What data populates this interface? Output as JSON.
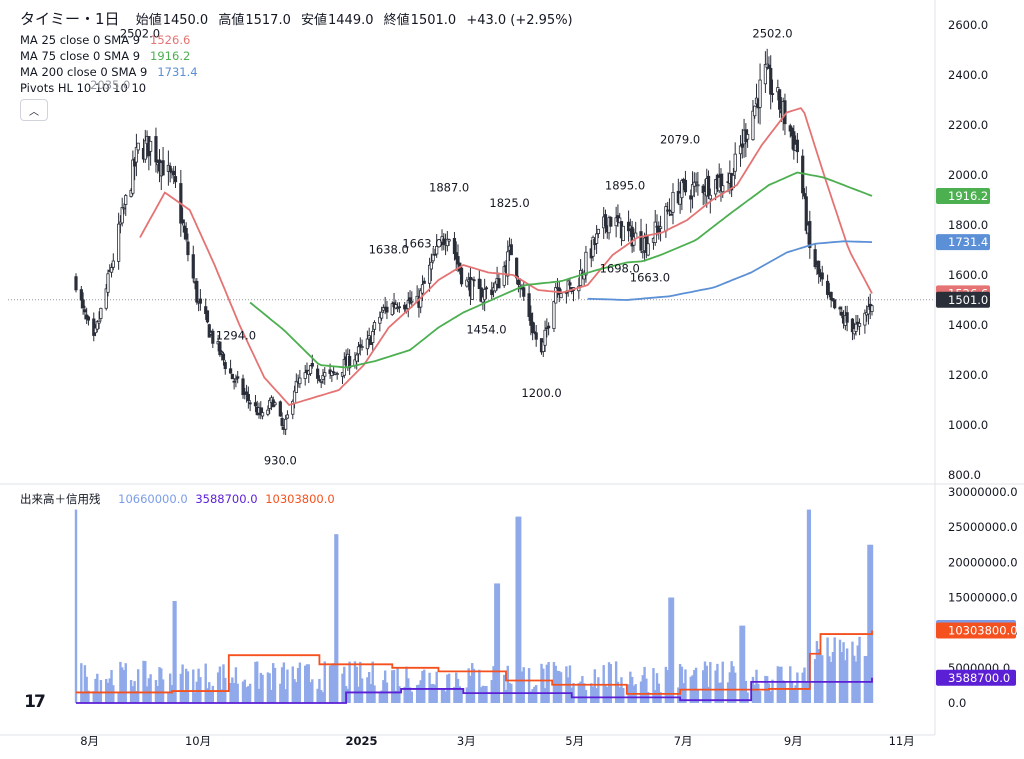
{
  "header": {
    "symbol": "タイミー・1日",
    "open_label": "始値",
    "open": "1450.0",
    "high_label": "高値",
    "high": "1517.0",
    "low_label": "安値",
    "low": "1449.0",
    "close_label": "終値",
    "close": "1501.0",
    "change": "+43.0 (+2.95%)"
  },
  "indicators": [
    {
      "label": "MA 25 close 0 SMA 9",
      "value": "1526.6",
      "color": "#e57373"
    },
    {
      "label": "MA 75 close 0 SMA 9",
      "value": "1916.2",
      "color": "#4caf50"
    },
    {
      "label": "MA 200 close 0 SMA 9",
      "value": "1731.4",
      "color": "#5b8fd6"
    }
  ],
  "pivots_label": "Pivots HL 10 10 10 10",
  "pivots_overlap": "2035.0",
  "volume_legend": {
    "label": "出来高＋信用残",
    "values": [
      "10660000.0",
      "3588700.0",
      "10303800.0"
    ],
    "colors": [
      "#7b9de8",
      "#5b1fd6",
      "#f5511e"
    ]
  },
  "tv_logo": "17",
  "chart_data": [
    {
      "type": "candlestick",
      "y_ticks": [
        "800.0",
        "1000.0",
        "1200.0",
        "1400.0",
        "1600.0",
        "1800.0",
        "2000.0",
        "2200.0",
        "2400.0",
        "2600.0"
      ],
      "ylim": [
        800,
        2630
      ],
      "x_ticks": [
        "8月",
        "10月",
        "2025",
        "3月",
        "5月",
        "7月",
        "9月",
        "11月"
      ],
      "last_price": "1501.0",
      "price_badges": [
        {
          "text": "1916.2",
          "value": 1916.2,
          "color": "#4caf50"
        },
        {
          "text": "1731.4",
          "value": 1731.4,
          "color": "#5b8fd6"
        },
        {
          "text": "1526.6",
          "value": 1526.6,
          "color": "#e57373"
        },
        {
          "text": "1501.0",
          "value": 1501.0,
          "color": "#2a2e39"
        }
      ],
      "pivot_labels": [
        {
          "text": "2502.0",
          "date": "2024-08-31",
          "value": 2502,
          "pos": "above"
        },
        {
          "text": "1294.0",
          "date": "2024-10-24",
          "value": 1294,
          "pos": "above"
        },
        {
          "text": "930.0",
          "date": "2024-11-18",
          "value": 930,
          "pos": "below"
        },
        {
          "text": "1638.0",
          "date": "2025-01-18",
          "value": 1638,
          "pos": "above"
        },
        {
          "text": "1663.0",
          "date": "2025-02-06",
          "value": 1663,
          "pos": "above"
        },
        {
          "text": "1887.0",
          "date": "2025-02-21",
          "value": 1887,
          "pos": "above"
        },
        {
          "text": "1825.0",
          "date": "2025-03-27",
          "value": 1825,
          "pos": "above"
        },
        {
          "text": "1454.0",
          "date": "2025-03-14",
          "value": 1454,
          "pos": "below"
        },
        {
          "text": "1200.0",
          "date": "2025-04-14",
          "value": 1200,
          "pos": "below"
        },
        {
          "text": "1698.0",
          "date": "2025-05-28",
          "value": 1698,
          "pos": "below"
        },
        {
          "text": "1663.0",
          "date": "2025-06-14",
          "value": 1663,
          "pos": "below"
        },
        {
          "text": "1895.0",
          "date": "2025-05-31",
          "value": 1895,
          "pos": "above"
        },
        {
          "text": "2079.0",
          "date": "2025-07-01",
          "value": 2079,
          "pos": "above"
        },
        {
          "text": "2502.0",
          "date": "2025-08-22",
          "value": 2502,
          "pos": "above"
        }
      ],
      "candles_anchor": [
        [
          "2024-07-26",
          1580
        ],
        [
          "2024-07-30",
          1450
        ],
        [
          "2024-08-05",
          1330
        ],
        [
          "2024-08-12",
          1540
        ],
        [
          "2024-08-20",
          1800
        ],
        [
          "2024-08-30",
          2100
        ],
        [
          "2024-09-06",
          2120
        ],
        [
          "2024-09-12",
          2050
        ],
        [
          "2024-09-20",
          1950
        ],
        [
          "2024-09-26",
          1720
        ],
        [
          "2024-10-03",
          1480
        ],
        [
          "2024-10-12",
          1330
        ],
        [
          "2024-10-22",
          1190
        ],
        [
          "2024-10-30",
          1110
        ],
        [
          "2024-11-08",
          1030
        ],
        [
          "2024-11-14",
          1100
        ],
        [
          "2024-11-20",
          970
        ],
        [
          "2024-11-26",
          1150
        ],
        [
          "2024-12-05",
          1210
        ],
        [
          "2024-12-12",
          1200
        ],
        [
          "2024-12-16",
          1190
        ],
        [
          "2025-01-06",
          1320
        ],
        [
          "2025-01-14",
          1450
        ],
        [
          "2025-01-24",
          1500
        ],
        [
          "2025-02-03",
          1480
        ],
        [
          "2025-02-10",
          1620
        ],
        [
          "2025-02-20",
          1780
        ],
        [
          "2025-03-01",
          1580
        ],
        [
          "2025-03-10",
          1520
        ],
        [
          "2025-03-20",
          1560
        ],
        [
          "2025-03-28",
          1700
        ],
        [
          "2025-04-07",
          1430
        ],
        [
          "2025-04-14",
          1280
        ],
        [
          "2025-04-22",
          1560
        ],
        [
          "2025-05-02",
          1540
        ],
        [
          "2025-05-12",
          1700
        ],
        [
          "2025-05-22",
          1830
        ],
        [
          "2025-06-02",
          1760
        ],
        [
          "2025-06-12",
          1730
        ],
        [
          "2025-06-20",
          1800
        ],
        [
          "2025-06-30",
          1930
        ],
        [
          "2025-07-10",
          1950
        ],
        [
          "2025-07-20",
          1970
        ],
        [
          "2025-07-30",
          1990
        ],
        [
          "2025-08-08",
          2200
        ],
        [
          "2025-08-18",
          2400
        ],
        [
          "2025-08-28",
          2250
        ],
        [
          "2025-09-05",
          2100
        ],
        [
          "2025-09-12",
          1700
        ],
        [
          "2025-09-22",
          1500
        ],
        [
          "2025-10-01",
          1420
        ],
        [
          "2025-10-10",
          1380
        ],
        [
          "2025-10-17",
          1501
        ]
      ],
      "ma25_anchor": [
        [
          "2024-08-31",
          1750
        ],
        [
          "2024-09-14",
          1930
        ],
        [
          "2024-09-28",
          1860
        ],
        [
          "2024-10-12",
          1640
        ],
        [
          "2024-10-26",
          1400
        ],
        [
          "2024-11-09",
          1190
        ],
        [
          "2024-11-23",
          1080
        ],
        [
          "2024-12-07",
          1110
        ],
        [
          "2024-12-21",
          1140
        ],
        [
          "2025-01-04",
          1240
        ],
        [
          "2025-01-18",
          1390
        ],
        [
          "2025-02-01",
          1480
        ],
        [
          "2025-02-15",
          1580
        ],
        [
          "2025-03-01",
          1640
        ],
        [
          "2025-03-15",
          1610
        ],
        [
          "2025-03-29",
          1600
        ],
        [
          "2025-04-12",
          1540
        ],
        [
          "2025-04-26",
          1530
        ],
        [
          "2025-05-10",
          1560
        ],
        [
          "2025-05-24",
          1680
        ],
        [
          "2025-06-07",
          1750
        ],
        [
          "2025-06-21",
          1770
        ],
        [
          "2025-07-05",
          1820
        ],
        [
          "2025-07-19",
          1900
        ],
        [
          "2025-08-02",
          1960
        ],
        [
          "2025-08-16",
          2120
        ],
        [
          "2025-08-30",
          2250
        ],
        [
          "2025-09-08",
          2270
        ],
        [
          "2025-09-20",
          2000
        ],
        [
          "2025-10-04",
          1700
        ],
        [
          "2025-10-17",
          1526.6
        ]
      ],
      "ma75_anchor": [
        [
          "2024-11-01",
          1490
        ],
        [
          "2024-11-20",
          1380
        ],
        [
          "2024-12-10",
          1240
        ],
        [
          "2024-12-25",
          1230
        ],
        [
          "2025-01-10",
          1255
        ],
        [
          "2025-01-30",
          1300
        ],
        [
          "2025-02-15",
          1390
        ],
        [
          "2025-03-01",
          1450
        ],
        [
          "2025-03-20",
          1510
        ],
        [
          "2025-04-05",
          1560
        ],
        [
          "2025-04-25",
          1575
        ],
        [
          "2025-05-15",
          1620
        ],
        [
          "2025-06-01",
          1650
        ],
        [
          "2025-06-10",
          1655
        ],
        [
          "2025-06-20",
          1680
        ],
        [
          "2025-07-10",
          1740
        ],
        [
          "2025-07-30",
          1850
        ],
        [
          "2025-08-20",
          1960
        ],
        [
          "2025-09-05",
          2010
        ],
        [
          "2025-09-20",
          1990
        ],
        [
          "2025-10-17",
          1916.2
        ]
      ],
      "ma200_anchor": [
        [
          "2025-05-10",
          1505
        ],
        [
          "2025-06-01",
          1500
        ],
        [
          "2025-06-25",
          1515
        ],
        [
          "2025-07-20",
          1550
        ],
        [
          "2025-08-10",
          1610
        ],
        [
          "2025-08-30",
          1690
        ],
        [
          "2025-09-15",
          1725
        ],
        [
          "2025-10-01",
          1735
        ],
        [
          "2025-10-17",
          1731.4
        ]
      ]
    },
    {
      "type": "bar",
      "title": "出来高＋信用残",
      "y_ticks": [
        "0.0",
        "5000000.0",
        "10000000.0",
        "15000000.0",
        "20000000.0",
        "25000000.0",
        "30000000.0"
      ],
      "ylim": [
        0,
        30000000
      ],
      "badges": [
        {
          "text": "10660000.0",
          "value": 10660000,
          "color": "#7b9de8"
        },
        {
          "text": "10303800.0",
          "value": 10303800,
          "color": "#f5511e"
        },
        {
          "text": "3588700.0",
          "value": 3588700,
          "color": "#5b1fd6"
        }
      ],
      "spikes": [
        [
          "2024-07-26",
          27500000
        ],
        [
          "2024-09-20",
          14500000
        ],
        [
          "2024-12-20",
          24000000
        ],
        [
          "2025-03-20",
          17000000
        ],
        [
          "2025-04-01",
          26500000
        ],
        [
          "2025-06-26",
          15000000
        ],
        [
          "2025-08-05",
          11000000
        ],
        [
          "2025-09-12",
          27500000
        ],
        [
          "2025-10-16",
          22500000
        ]
      ],
      "margin_sell": [
        [
          "2024-07-26",
          1500000
        ],
        [
          "2024-09-18",
          1700000
        ],
        [
          "2024-10-20",
          6800000
        ],
        [
          "2024-12-10",
          5500000
        ],
        [
          "2025-01-20",
          5000000
        ],
        [
          "2025-02-15",
          4500000
        ],
        [
          "2025-03-25",
          3200000
        ],
        [
          "2025-04-20",
          2600000
        ],
        [
          "2025-06-01",
          1300000
        ],
        [
          "2025-07-01",
          1900000
        ],
        [
          "2025-08-20",
          2000000
        ],
        [
          "2025-09-12",
          7000000
        ],
        [
          "2025-09-18",
          9800000
        ],
        [
          "2025-10-17",
          10303800
        ]
      ],
      "margin_buy": [
        [
          "2024-07-26",
          0
        ],
        [
          "2024-12-18",
          0
        ],
        [
          "2024-12-25",
          1500000
        ],
        [
          "2025-01-25",
          2000000
        ],
        [
          "2025-03-01",
          1400000
        ],
        [
          "2025-05-01",
          800000
        ],
        [
          "2025-07-01",
          400000
        ],
        [
          "2025-08-10",
          3000000
        ],
        [
          "2025-10-17",
          3588700
        ]
      ]
    }
  ]
}
